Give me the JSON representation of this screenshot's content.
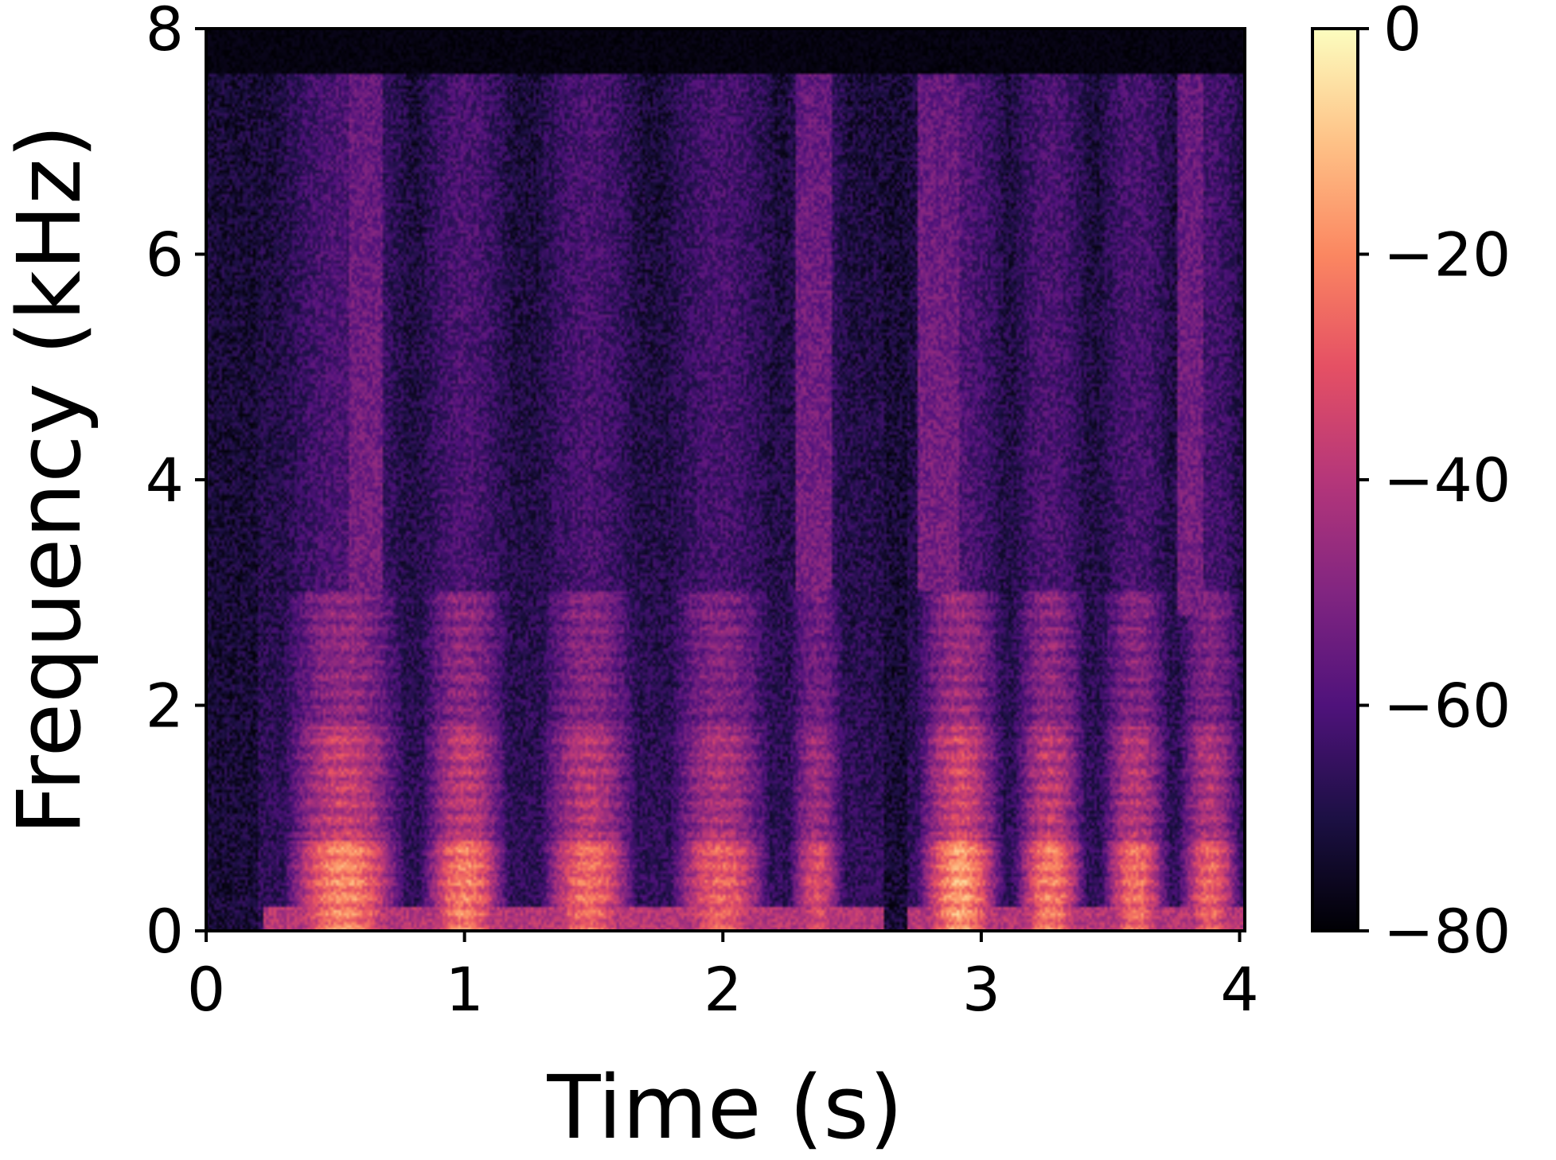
{
  "chart_data": {
    "type": "heatmap",
    "subtype": "spectrogram",
    "title": "",
    "xlabel": "Time (s)",
    "ylabel": "Frequency (kHz)",
    "xlim": [
      0,
      4.02
    ],
    "ylim": [
      0,
      8
    ],
    "xticks": [
      0,
      1,
      2,
      3,
      4
    ],
    "yticks": [
      0,
      2,
      4,
      6,
      8
    ],
    "xtick_labels": [
      "0",
      "1",
      "2",
      "3",
      "4"
    ],
    "ytick_labels": [
      "0",
      "2",
      "4",
      "6",
      "8"
    ],
    "colorbar": {
      "colormap": "magma",
      "range": [
        -80,
        0
      ],
      "ticks": [
        0,
        -20,
        -40,
        -60,
        -80
      ],
      "tick_labels": [
        "0",
        "−20",
        "−40",
        "−60",
        "−80"
      ],
      "colors": [
        "#000004",
        "#1c1044",
        "#4f127b",
        "#812581",
        "#b5367a",
        "#e55064",
        "#fb8761",
        "#fec287",
        "#fcfdbf"
      ]
    },
    "max_frequency_khz": 7.6,
    "voiced_segments": [
      {
        "start": 0.28,
        "end": 0.78,
        "strength": 0.95
      },
      {
        "start": 0.82,
        "end": 1.18,
        "strength": 0.9
      },
      {
        "start": 1.28,
        "end": 1.68,
        "strength": 0.85
      },
      {
        "start": 1.78,
        "end": 2.2,
        "strength": 0.8
      },
      {
        "start": 2.25,
        "end": 2.48,
        "strength": 0.7
      },
      {
        "start": 2.74,
        "end": 3.1,
        "strength": 1.0
      },
      {
        "start": 3.12,
        "end": 3.42,
        "strength": 0.9
      },
      {
        "start": 3.46,
        "end": 3.74,
        "strength": 0.85
      },
      {
        "start": 3.76,
        "end": 4.02,
        "strength": 0.8
      }
    ],
    "fricative_segments": [
      {
        "start": 0.55,
        "end": 0.68,
        "low_khz": 3.0,
        "high_khz": 7.6
      },
      {
        "start": 2.28,
        "end": 2.42,
        "low_khz": 3.0,
        "high_khz": 7.6
      },
      {
        "start": 2.76,
        "end": 2.92,
        "low_khz": 3.0,
        "high_khz": 7.6
      },
      {
        "start": 3.76,
        "end": 3.86,
        "low_khz": 2.8,
        "high_khz": 7.6
      }
    ],
    "silence_segments": [
      {
        "start": 0.0,
        "end": 0.2
      },
      {
        "start": 2.62,
        "end": 2.72
      }
    ]
  }
}
